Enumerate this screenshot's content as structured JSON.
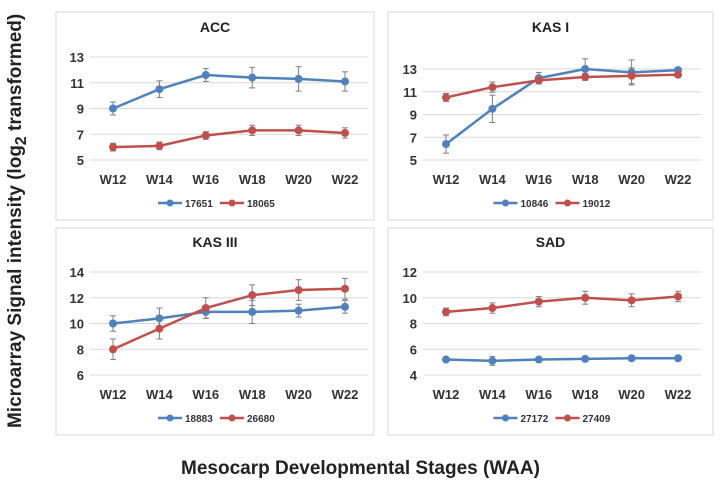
{
  "ylabel": "Microarray Signal intensity (log",
  "ylabel_sub": "2",
  "ylabel_end": " transformed)",
  "xlabel": "Mesocarp Developmental Stages (WAA)",
  "colors": {
    "blue": "#4f81bd",
    "red": "#c0504d",
    "grid": "#d9d9d9",
    "error": "#7f7f7f"
  },
  "chart_data": [
    {
      "type": "line",
      "title": "ACC",
      "categories": [
        "W12",
        "W14",
        "W16",
        "W18",
        "W20",
        "W22"
      ],
      "ylim": [
        5,
        13
      ],
      "yticks": [
        5,
        7,
        9,
        11,
        13
      ],
      "grid": true,
      "legend": "bottom",
      "series": [
        {
          "name": "17651",
          "values": [
            9.0,
            10.5,
            11.6,
            11.4,
            11.3,
            11.1
          ],
          "error": [
            0.5,
            0.65,
            0.5,
            0.8,
            0.95,
            0.75
          ]
        },
        {
          "name": "18065",
          "values": [
            6.0,
            6.1,
            6.9,
            7.3,
            7.3,
            7.1
          ],
          "error": [
            0.3,
            0.3,
            0.3,
            0.4,
            0.4,
            0.4
          ]
        }
      ]
    },
    {
      "type": "line",
      "title": "KAS I",
      "categories": [
        "W12",
        "W14",
        "W16",
        "W18",
        "W20",
        "W22"
      ],
      "ylim": [
        5,
        13
      ],
      "yticks": [
        5,
        7,
        9,
        11,
        13
      ],
      "grid": true,
      "legend": "bottom",
      "series": [
        {
          "name": "10846",
          "values": [
            6.4,
            9.5,
            12.2,
            13.0,
            12.7,
            12.9
          ],
          "error": [
            0.8,
            1.2,
            0.5,
            0.9,
            1.1,
            0.1
          ]
        },
        {
          "name": "19012",
          "values": [
            10.5,
            11.4,
            12.0,
            12.3,
            12.4,
            12.5
          ],
          "error": [
            0.35,
            0.45,
            0.3,
            0.3,
            0.7,
            0.1
          ]
        }
      ]
    },
    {
      "type": "line",
      "title": "KAS III",
      "categories": [
        "W12",
        "W14",
        "W16",
        "W18",
        "W20",
        "W22"
      ],
      "ylim": [
        6,
        14
      ],
      "yticks": [
        6,
        8,
        10,
        12,
        14
      ],
      "grid": true,
      "legend": "bottom",
      "series": [
        {
          "name": "18883",
          "values": [
            10.0,
            10.4,
            10.9,
            10.9,
            11.0,
            11.3
          ],
          "error": [
            0.6,
            0.8,
            0.5,
            0.9,
            0.5,
            0.5
          ]
        },
        {
          "name": "26680",
          "values": [
            8.0,
            9.6,
            11.2,
            12.2,
            12.6,
            12.7
          ],
          "error": [
            0.8,
            0.8,
            0.8,
            0.8,
            0.8,
            0.8
          ]
        }
      ]
    },
    {
      "type": "line",
      "title": "SAD",
      "categories": [
        "W12",
        "W14",
        "W16",
        "W18",
        "W20",
        "W22"
      ],
      "ylim": [
        4,
        12
      ],
      "yticks": [
        4,
        6,
        8,
        10,
        12
      ],
      "grid": true,
      "legend": "bottom",
      "series": [
        {
          "name": "27172",
          "values": [
            5.2,
            5.1,
            5.2,
            5.25,
            5.3,
            5.3
          ],
          "error": [
            0.1,
            0.35,
            0.1,
            0.1,
            0.1,
            0.1
          ]
        },
        {
          "name": "27409",
          "values": [
            8.9,
            9.2,
            9.7,
            10.0,
            9.8,
            10.1
          ],
          "error": [
            0.3,
            0.4,
            0.4,
            0.5,
            0.5,
            0.4
          ]
        }
      ]
    }
  ]
}
